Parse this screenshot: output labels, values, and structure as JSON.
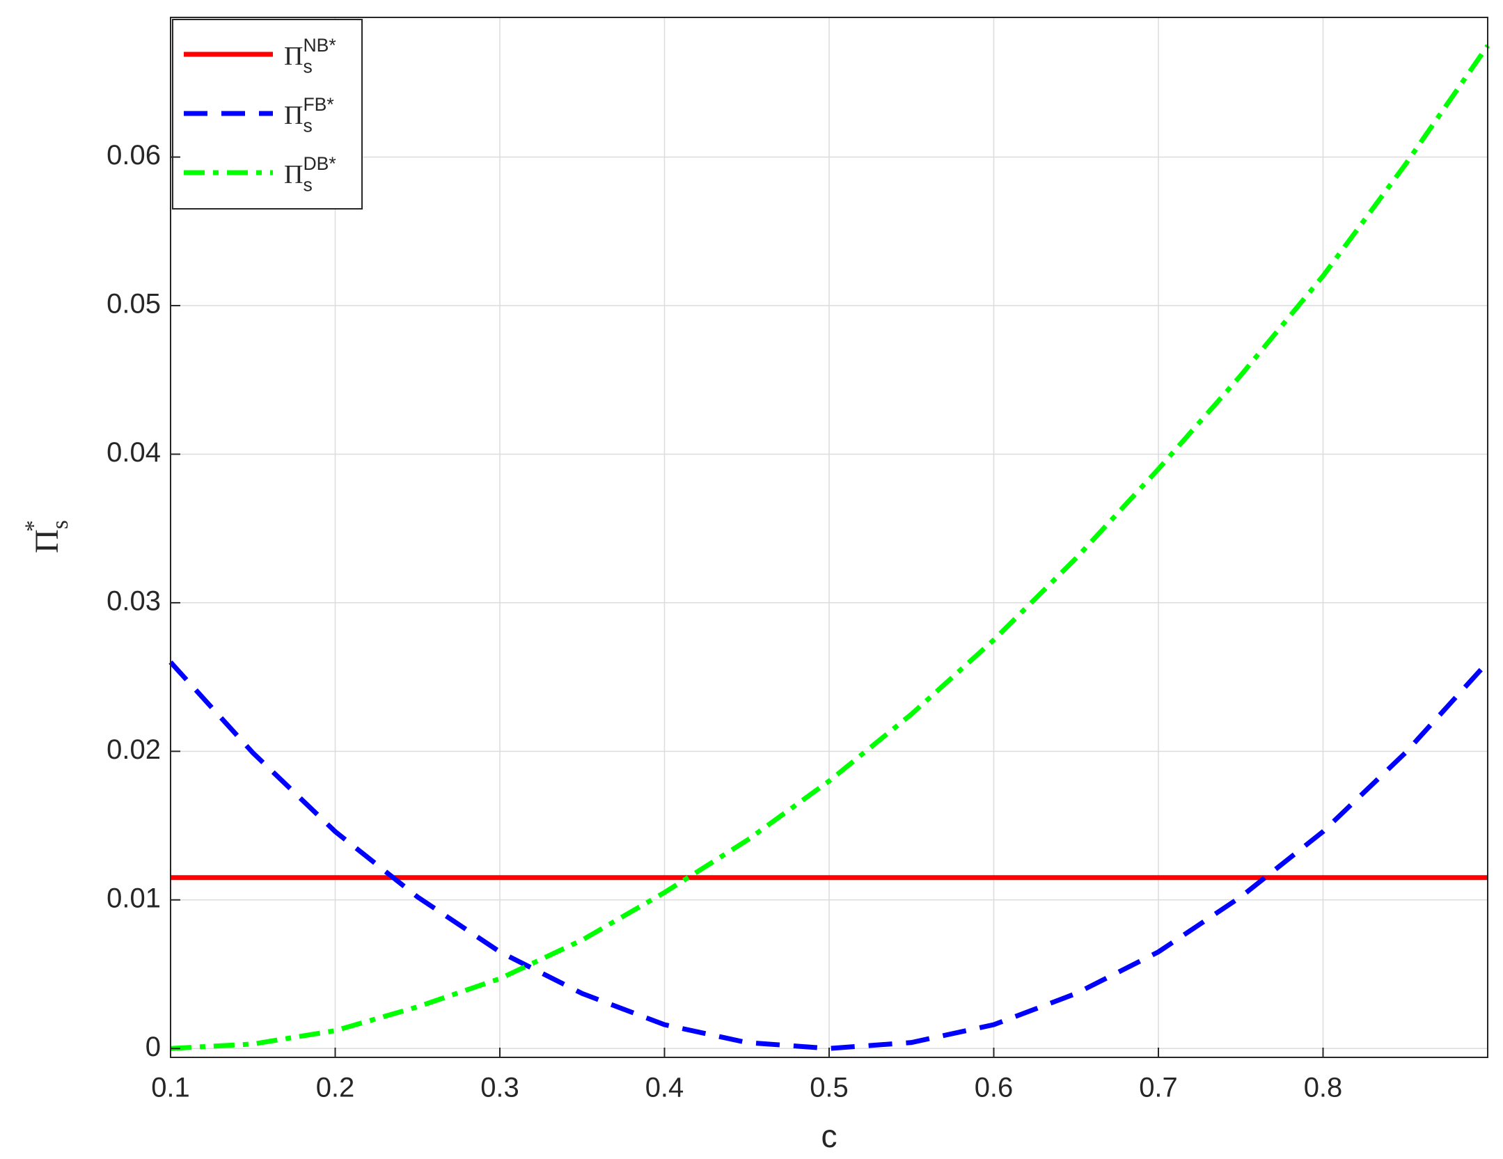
{
  "chart_data": {
    "type": "line",
    "x_label": "c",
    "y_label": "Π_s^{*}",
    "x": [
      0.1,
      0.15,
      0.2,
      0.25,
      0.3,
      0.35,
      0.4,
      0.45,
      0.5,
      0.55,
      0.6,
      0.65,
      0.7,
      0.75,
      0.8,
      0.85,
      0.9
    ],
    "series": [
      {
        "name": "Π_s^{NB*}",
        "color": "#ff0000",
        "dash": "solid",
        "values": [
          0.0115,
          0.0115,
          0.0115,
          0.0115,
          0.0115,
          0.0115,
          0.0115,
          0.0115,
          0.0115,
          0.0115,
          0.0115,
          0.0115,
          0.0115,
          0.0115,
          0.0115,
          0.0115,
          0.0115
        ]
      },
      {
        "name": "Π_s^{FB*}",
        "color": "#0000ff",
        "dash": "dashed",
        "values": [
          0.026,
          0.0199,
          0.0146,
          0.0102,
          0.0065,
          0.0037,
          0.0016,
          0.0004,
          0,
          0.0004,
          0.0016,
          0.0037,
          0.0065,
          0.0102,
          0.0146,
          0.0199,
          0.026
        ]
      },
      {
        "name": "Π_s^{DB*}",
        "color": "#00ff00",
        "dash": "dashdot",
        "values": [
          0,
          0.0003,
          0.0012,
          0.0028,
          0.0047,
          0.0073,
          0.0105,
          0.014,
          0.018,
          0.0225,
          0.0275,
          0.033,
          0.039,
          0.0453,
          0.052,
          0.0595,
          0.0675
        ]
      }
    ],
    "xlim": [
      0.1,
      0.9
    ],
    "ylim": [
      -0.0006,
      0.0694
    ],
    "xticks": [
      0.1,
      0.2,
      0.3,
      0.4,
      0.5,
      0.6,
      0.7,
      0.8
    ],
    "yticks": [
      0,
      0.01,
      0.02,
      0.03,
      0.04,
      0.05,
      0.06
    ],
    "grid": true,
    "legend": "upper-left"
  }
}
